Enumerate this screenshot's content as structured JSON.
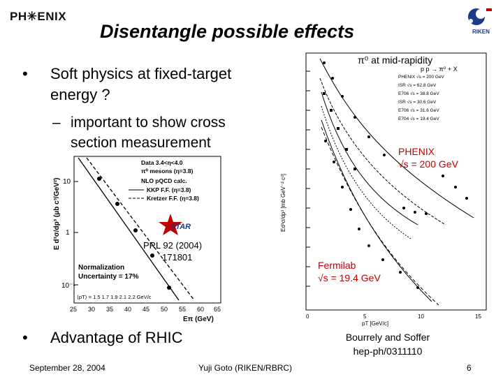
{
  "header": {
    "logo": "PH✳ENIX",
    "title": "Disentangle possible effects",
    "riken_badge": "RIKEN"
  },
  "bullets": [
    {
      "line1": "Soft physics at fixed-target",
      "line2": "energy ?"
    },
    {
      "line1": "Advantage of RHIC"
    }
  ],
  "sub_bullet": {
    "line1": "important to show cross",
    "line2": "section measurement"
  },
  "left_plot": {
    "legend_line1": "Data 3.4<η<4.0",
    "legend_line2": "π⁰ mesons (η=3.8)",
    "legend_line3": "NLO pQCD calc.",
    "legend_line4": "KKP F.F. (η=3.8)",
    "legend_line5": "Kretzer F.F. (η=3.8)",
    "star_logo": "STAR",
    "ylabel": "E d³σ/dp³ (μb c³/GeV²)",
    "xlabel": "Eπ (GeV)",
    "yticks": [
      "10",
      "1",
      "10⁻¹"
    ],
    "xticks": [
      "25",
      "30",
      "35",
      "40",
      "45",
      "50",
      "55",
      "60",
      "65"
    ],
    "pt_row": "⟨pT⟩ = 1.5   1.7   1.9   2.1   2.2  GeV/c",
    "norm_line1": "Normalization",
    "norm_line2": "Uncertainty = 17%",
    "ref_line1": "PRL 92 (2004)",
    "ref_line2": "171801"
  },
  "right_plot": {
    "overlay_title": "π⁰ at mid-rapidity",
    "reaction": "p p → π⁰ + X",
    "legend": [
      "PHENIX √s = 200 GeV",
      "ISR √s = 62.8 GeV",
      "E706 √s = 38.8 GeV",
      "ISR √s = 30.6 GeV",
      "E706 √s = 31.6 GeV",
      "E704 √s = 19.4 GeV"
    ],
    "phenix_line1": "PHENIX",
    "phenix_line2": "√s = 200 GeV",
    "fermilab_line1": "Fermilab",
    "fermilab_line2": "√s = 19.4 GeV",
    "xlabel": "pT [GeV/c]",
    "xticks": [
      "0",
      "5",
      "10",
      "15"
    ],
    "ylabel": "Ed³σ/dp³ [mb GeV⁻² c³]",
    "caption_line1": "Bourrely and Soffer",
    "caption_line2": "hep-ph/0311110"
  },
  "footer": {
    "date": "September 28, 2004",
    "author": "Yuji Goto (RIKEN/RBRC)",
    "page": "6"
  }
}
